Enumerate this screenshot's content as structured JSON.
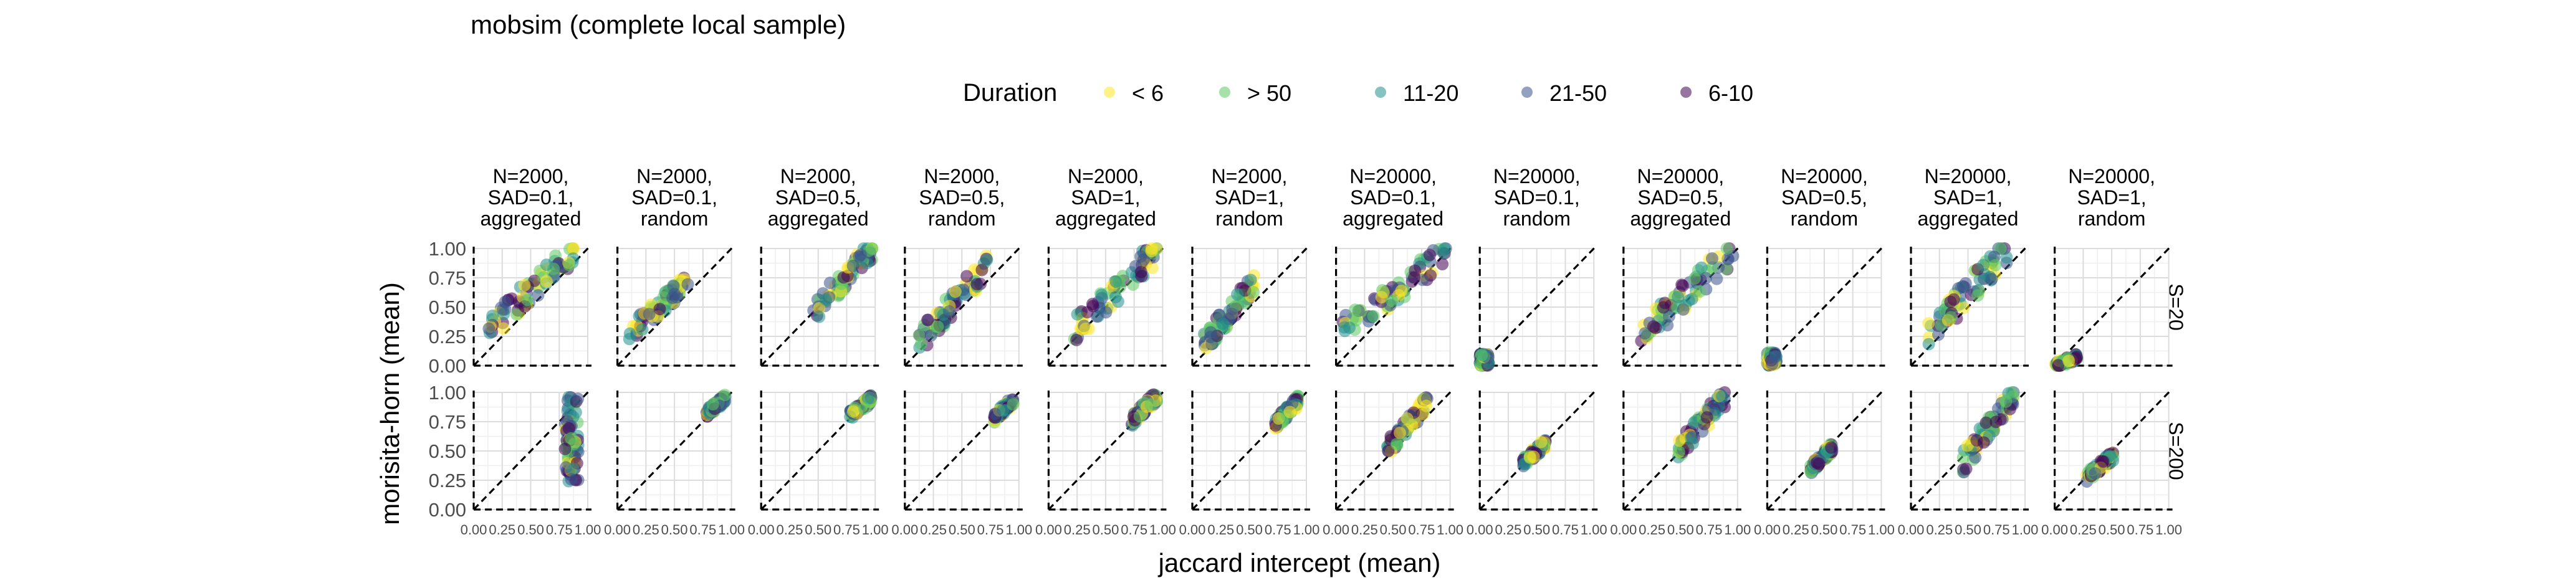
{
  "chart_data": {
    "type": "scatter",
    "title": "mobsim (complete local sample)",
    "xlabel": "jaccard intercept (mean)",
    "ylabel": "morisita-horn (mean)",
    "xlim": [
      0,
      1
    ],
    "ylim": [
      0,
      1
    ],
    "x_ticks": [
      "0.00",
      "0.25",
      "0.50",
      "0.75",
      "1.00"
    ],
    "y_ticks": [
      "0.00",
      "0.25",
      "0.50",
      "0.75",
      "1.00"
    ],
    "grid": true,
    "reference_lines": [
      "y = x (dashed)",
      "x = 0 (dashed)",
      "y = 0 (dashed)"
    ],
    "legend": {
      "title": "Duration",
      "position": "top",
      "entries": [
        {
          "label": "< 6",
          "color": "#FDE725"
        },
        {
          "label": "> 50",
          "color": "#5DC863"
        },
        {
          "label": "11-20",
          "color": "#21908C"
        },
        {
          "label": "21-50",
          "color": "#3B528B"
        },
        {
          "label": "6-10",
          "color": "#440154"
        }
      ]
    },
    "facet_columns": [
      [
        "N=2000,",
        "SAD=0.1,",
        "aggregated"
      ],
      [
        "N=2000,",
        "SAD=0.1,",
        "random"
      ],
      [
        "N=2000,",
        "SAD=0.5,",
        "aggregated"
      ],
      [
        "N=2000,",
        "SAD=0.5,",
        "random"
      ],
      [
        "N=2000,",
        "SAD=1,",
        "aggregated"
      ],
      [
        "N=2000,",
        "SAD=1,",
        "random"
      ],
      [
        "N=20000,",
        "SAD=0.1,",
        "aggregated"
      ],
      [
        "N=20000,",
        "SAD=0.1,",
        "random"
      ],
      [
        "N=20000,",
        "SAD=0.5,",
        "aggregated"
      ],
      [
        "N=20000,",
        "SAD=0.5,",
        "random"
      ],
      [
        "N=20000,",
        "SAD=1,",
        "aggregated"
      ],
      [
        "N=20000,",
        "SAD=1,",
        "random"
      ]
    ],
    "facet_rows": [
      "S=20",
      "S=200"
    ],
    "panels": [
      {
        "row": 0,
        "col": 0,
        "x": [
          0.12,
          0.88
        ],
        "y": [
          0.3,
          0.98
        ]
      },
      {
        "row": 0,
        "col": 1,
        "x": [
          0.1,
          0.62
        ],
        "y": [
          0.27,
          0.72
        ]
      },
      {
        "row": 0,
        "col": 2,
        "x": [
          0.45,
          0.98
        ],
        "y": [
          0.45,
          1.0
        ]
      },
      {
        "row": 0,
        "col": 3,
        "x": [
          0.12,
          0.72
        ],
        "y": [
          0.2,
          0.85
        ]
      },
      {
        "row": 0,
        "col": 4,
        "x": [
          0.22,
          0.97
        ],
        "y": [
          0.3,
          1.0
        ]
      },
      {
        "row": 0,
        "col": 5,
        "x": [
          0.1,
          0.55
        ],
        "y": [
          0.18,
          0.72
        ]
      },
      {
        "row": 0,
        "col": 6,
        "x": [
          0.05,
          0.97
        ],
        "y": [
          0.3,
          0.97
        ]
      },
      {
        "row": 0,
        "col": 7,
        "x": [
          0.0,
          0.08
        ],
        "y": [
          0.0,
          0.1
        ]
      },
      {
        "row": 0,
        "col": 8,
        "x": [
          0.15,
          0.97
        ],
        "y": [
          0.25,
          1.0
        ]
      },
      {
        "row": 0,
        "col": 9,
        "x": [
          0.0,
          0.08
        ],
        "y": [
          0.0,
          0.12
        ]
      },
      {
        "row": 0,
        "col": 10,
        "x": [
          0.15,
          0.85
        ],
        "y": [
          0.25,
          1.0
        ]
      },
      {
        "row": 0,
        "col": 11,
        "x": [
          0.0,
          0.2
        ],
        "y": [
          0.0,
          0.08
        ]
      },
      {
        "row": 1,
        "col": 0,
        "x": [
          0.8,
          0.92
        ],
        "y": [
          0.22,
          0.97
        ]
      },
      {
        "row": 1,
        "col": 1,
        "x": [
          0.78,
          0.95
        ],
        "y": [
          0.82,
          0.95
        ]
      },
      {
        "row": 1,
        "col": 2,
        "x": [
          0.78,
          0.97
        ],
        "y": [
          0.8,
          0.95
        ]
      },
      {
        "row": 1,
        "col": 3,
        "x": [
          0.78,
          0.95
        ],
        "y": [
          0.78,
          0.93
        ]
      },
      {
        "row": 1,
        "col": 4,
        "x": [
          0.73,
          0.95
        ],
        "y": [
          0.76,
          0.97
        ]
      },
      {
        "row": 1,
        "col": 5,
        "x": [
          0.72,
          0.93
        ],
        "y": [
          0.72,
          0.93
        ]
      },
      {
        "row": 1,
        "col": 6,
        "x": [
          0.45,
          0.8
        ],
        "y": [
          0.52,
          0.92
        ]
      },
      {
        "row": 1,
        "col": 7,
        "x": [
          0.38,
          0.58
        ],
        "y": [
          0.4,
          0.57
        ]
      },
      {
        "row": 1,
        "col": 8,
        "x": [
          0.45,
          0.9
        ],
        "y": [
          0.48,
          0.97
        ]
      },
      {
        "row": 1,
        "col": 9,
        "x": [
          0.38,
          0.57
        ],
        "y": [
          0.35,
          0.53
        ]
      },
      {
        "row": 1,
        "col": 10,
        "x": [
          0.45,
          0.9
        ],
        "y": [
          0.4,
          0.97
        ]
      },
      {
        "row": 1,
        "col": 11,
        "x": [
          0.28,
          0.52
        ],
        "y": [
          0.28,
          0.46
        ]
      }
    ]
  }
}
